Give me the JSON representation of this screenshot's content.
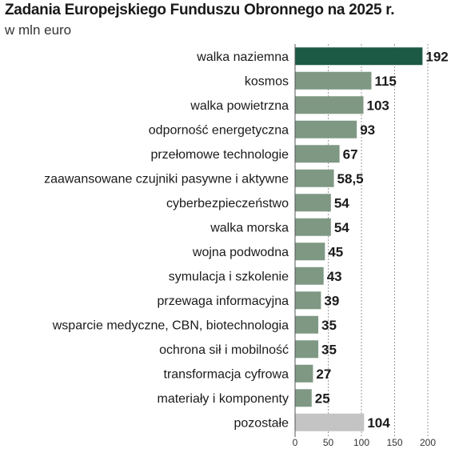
{
  "chart_data": {
    "type": "bar",
    "orientation": "horizontal",
    "title": "Zadania Europejskiego Funduszu Obronnego na 2025 r.",
    "subtitle": "w mln euro",
    "categories": [
      "walka naziemna",
      "kosmos",
      "walka powietrzna",
      "odporność energetyczna",
      "przełomowe technologie",
      "zaawansowane czujniki pasywne i aktywne",
      "cyberbezpieczeństwo",
      "walka morska",
      "wojna podwodna",
      "symulacja i szkolenie",
      "przewaga informacyjna",
      "wsparcie medyczne, CBN, biotechnologia",
      "ochrona sił i mobilność",
      "transformacja cyfrowa",
      "materiały i komponenty",
      "pozostałe"
    ],
    "values": [
      192,
      115,
      103,
      93,
      67,
      58.5,
      54,
      54,
      45,
      43,
      39,
      35,
      35,
      27,
      25,
      104
    ],
    "value_labels": [
      "192",
      "115",
      "103",
      "93",
      "67",
      "58,5",
      "54",
      "54",
      "45",
      "43",
      "39",
      "35",
      "35",
      "27",
      "25",
      "104"
    ],
    "xlim": [
      0,
      200
    ],
    "x_ticks": [
      0,
      50,
      100,
      150,
      200
    ],
    "grid": "vertical dashed",
    "legend": "none",
    "colors": {
      "highlight": "#1d5a46",
      "default": "#7f9884",
      "other": "#c4c4c4",
      "grid": "#9a9a9a"
    },
    "bar_color_roles": [
      "highlight",
      "default",
      "default",
      "default",
      "default",
      "default",
      "default",
      "default",
      "default",
      "default",
      "default",
      "default",
      "default",
      "default",
      "default",
      "other"
    ]
  }
}
